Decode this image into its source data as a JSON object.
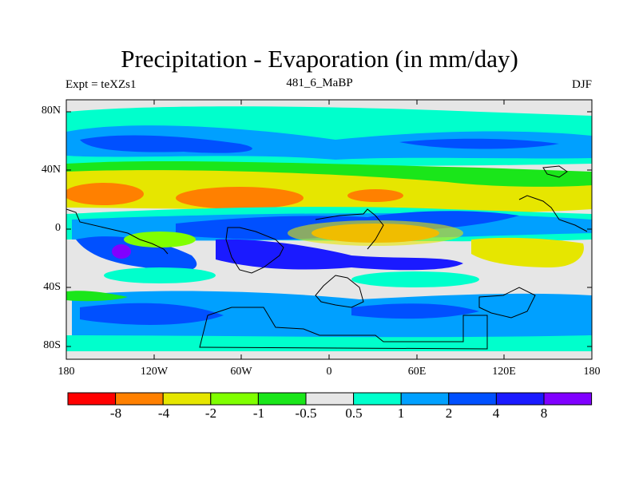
{
  "title": "Precipitation - Evaporation (in mm/day)",
  "subtitle_left": "Expt = teXZs1",
  "subtitle_center": "481_6_MaBP",
  "subtitle_right": "DJF",
  "y_ticks": [
    "80N",
    "40N",
    "0",
    "40S",
    "80S"
  ],
  "x_ticks": [
    "180",
    "120W",
    "60W",
    "0",
    "60E",
    "120E",
    "180"
  ],
  "colorbar": {
    "colors": [
      "#ff0000",
      "#ff8000",
      "#e6e600",
      "#80ff00",
      "#1ae61a",
      "#e6e6e6",
      "#00ffcc",
      "#00a0ff",
      "#0050ff",
      "#1a1aff",
      "#8000ff"
    ],
    "labels": [
      "-8",
      "-4",
      "-2",
      "-1",
      "-0.5",
      "0.5",
      "1",
      "2",
      "4",
      "8"
    ]
  },
  "colors": {
    "ocean_background": "#e6e6e6",
    "coastline": "#000000"
  }
}
